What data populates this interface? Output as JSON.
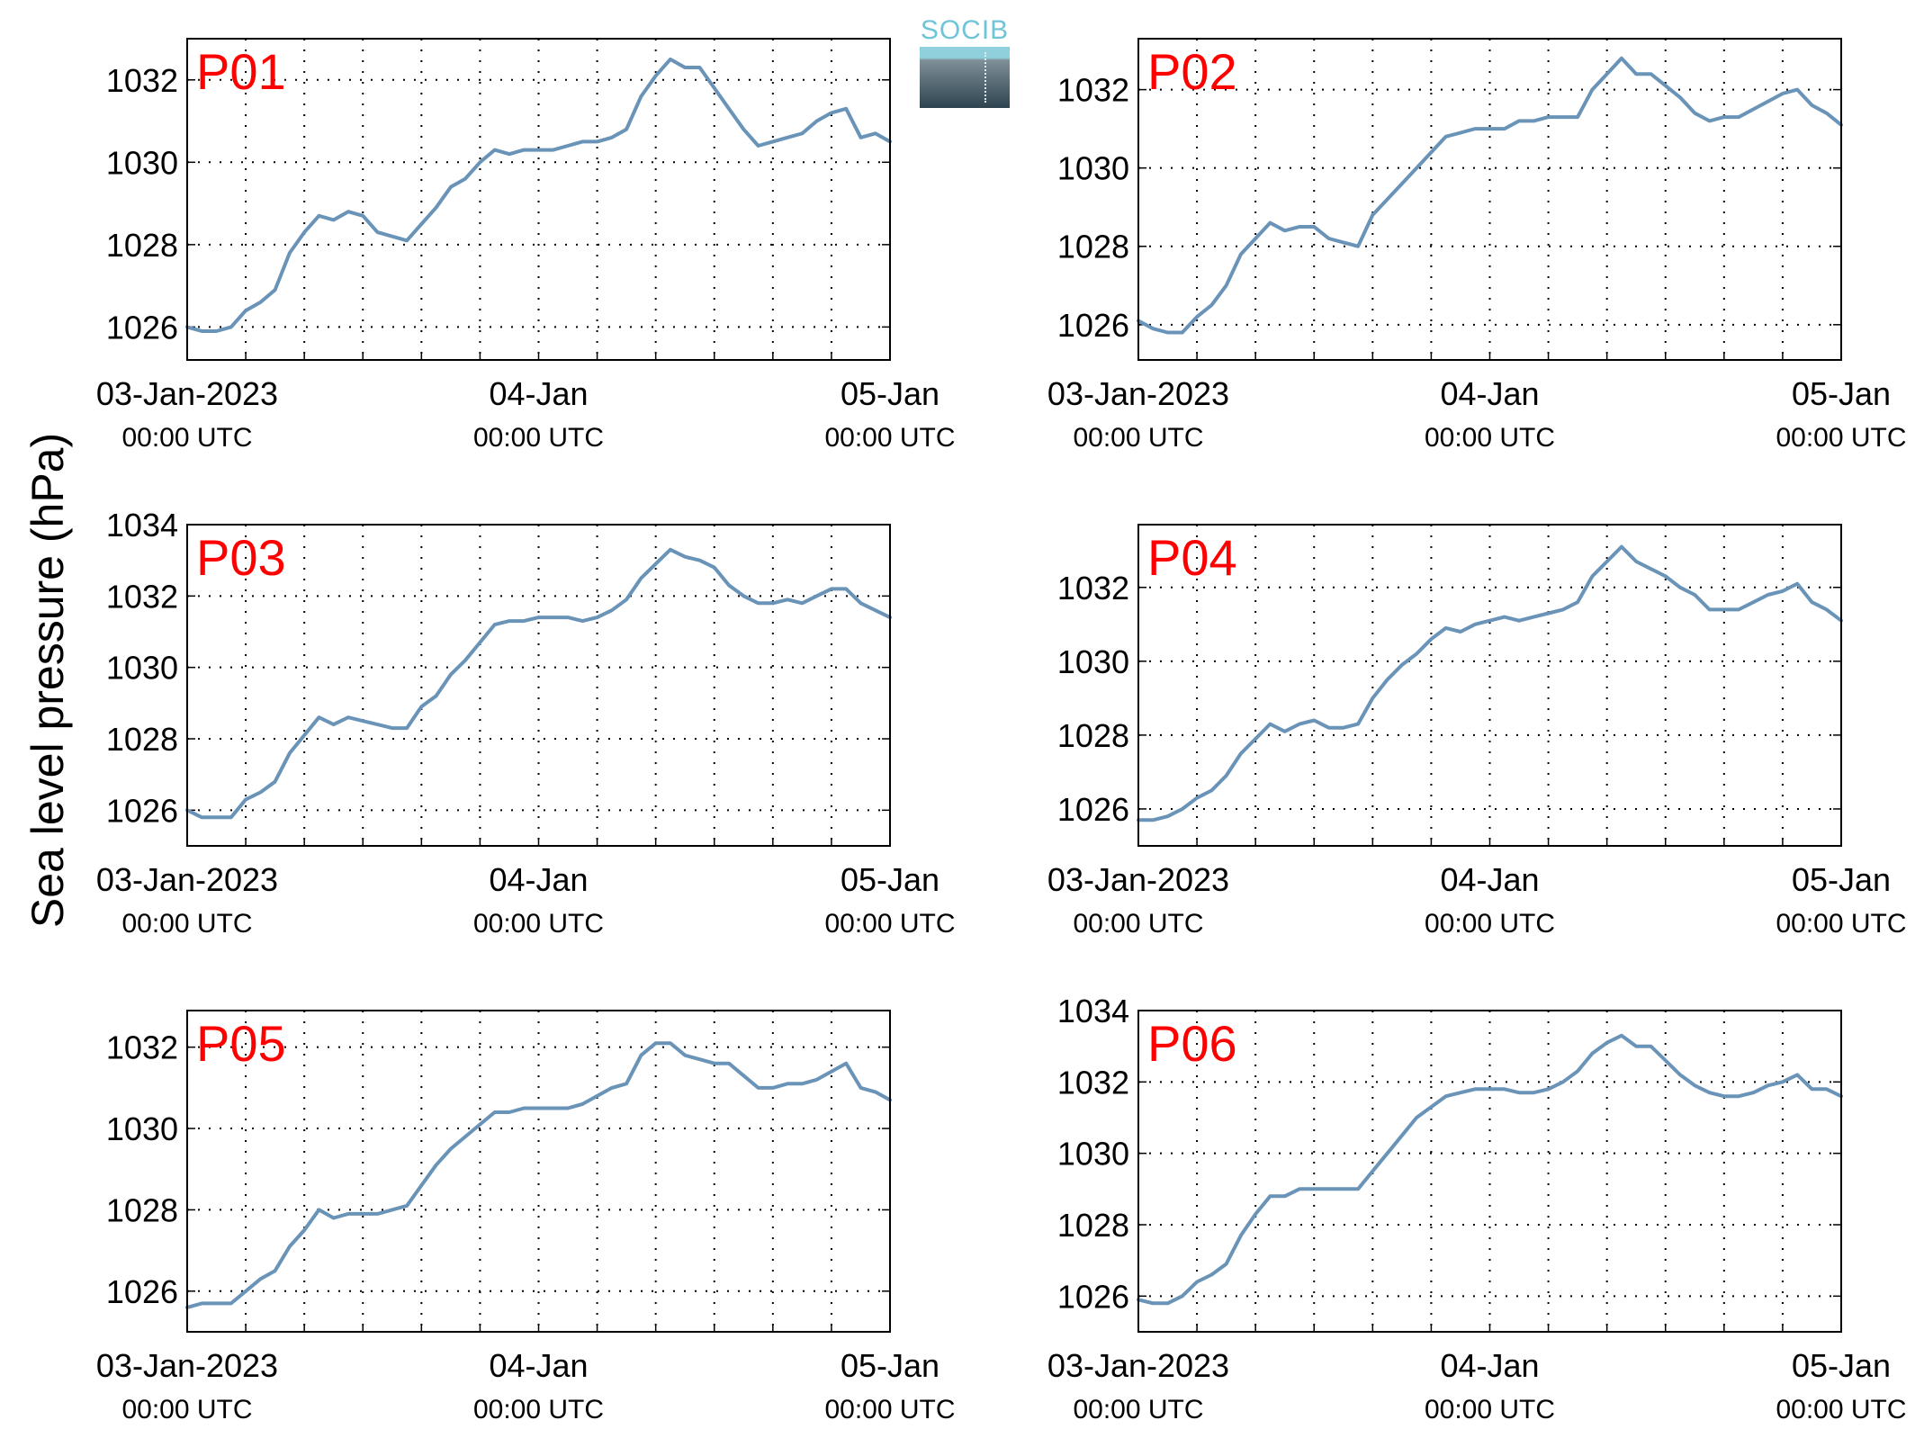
{
  "figure": {
    "ylabel": "Sea level pressure (hPa)",
    "logo_text": "SOCIB",
    "line_color": "#6a93b8",
    "label_color": "#ff0000"
  },
  "chart_data": [
    {
      "type": "line",
      "label": "P01",
      "xticks": [
        {
          "pos": 0,
          "l1": "03-Jan-2023",
          "l2": "00:00 UTC"
        },
        {
          "pos": 24,
          "l1": "04-Jan",
          "l2": "00:00 UTC"
        },
        {
          "pos": 48,
          "l1": "05-Jan",
          "l2": "00:00 UTC"
        }
      ],
      "xlim": [
        0,
        48
      ],
      "ylim": [
        1025.2,
        1033.0
      ],
      "yticks": [
        1026,
        1028,
        1030,
        1032
      ],
      "grid": true,
      "x": [
        0,
        1,
        2,
        3,
        4,
        5,
        6,
        7,
        8,
        9,
        10,
        11,
        12,
        13,
        14,
        15,
        16,
        17,
        18,
        19,
        20,
        21,
        22,
        23,
        24,
        25,
        26,
        27,
        28,
        29,
        30,
        31,
        32,
        33,
        34,
        35,
        36,
        37,
        38,
        39,
        40,
        41,
        42,
        43,
        44,
        45,
        46,
        47,
        48
      ],
      "y": [
        1026.0,
        1025.9,
        1025.9,
        1026.0,
        1026.4,
        1026.6,
        1026.9,
        1027.8,
        1028.3,
        1028.7,
        1028.6,
        1028.8,
        1028.7,
        1028.3,
        1028.2,
        1028.1,
        1028.5,
        1028.9,
        1029.4,
        1029.6,
        1030.0,
        1030.3,
        1030.2,
        1030.3,
        1030.3,
        1030.3,
        1030.4,
        1030.5,
        1030.5,
        1030.6,
        1030.8,
        1031.6,
        1032.1,
        1032.5,
        1032.3,
        1032.3,
        1031.8,
        1031.3,
        1030.8,
        1030.4,
        1030.5,
        1030.6,
        1030.7,
        1031.0,
        1031.2,
        1031.3,
        1030.6,
        1030.7,
        1030.5
      ]
    },
    {
      "type": "line",
      "label": "P02",
      "xticks": [
        {
          "pos": 0,
          "l1": "03-Jan-2023",
          "l2": "00:00 UTC"
        },
        {
          "pos": 24,
          "l1": "04-Jan",
          "l2": "00:00 UTC"
        },
        {
          "pos": 48,
          "l1": "05-Jan",
          "l2": "00:00 UTC"
        }
      ],
      "xlim": [
        0,
        48
      ],
      "ylim": [
        1025.1,
        1033.3
      ],
      "yticks": [
        1026,
        1028,
        1030,
        1032
      ],
      "grid": true,
      "x": [
        0,
        1,
        2,
        3,
        4,
        5,
        6,
        7,
        8,
        9,
        10,
        11,
        12,
        13,
        14,
        15,
        16,
        17,
        18,
        19,
        20,
        21,
        22,
        23,
        24,
        25,
        26,
        27,
        28,
        29,
        30,
        31,
        32,
        33,
        34,
        35,
        36,
        37,
        38,
        39,
        40,
        41,
        42,
        43,
        44,
        45,
        46,
        47,
        48
      ],
      "y": [
        1026.1,
        1025.9,
        1025.8,
        1025.8,
        1026.2,
        1026.5,
        1027.0,
        1027.8,
        1028.2,
        1028.6,
        1028.4,
        1028.5,
        1028.5,
        1028.2,
        1028.1,
        1028.0,
        1028.8,
        1029.2,
        1029.6,
        1030.0,
        1030.4,
        1030.8,
        1030.9,
        1031.0,
        1031.0,
        1031.0,
        1031.2,
        1031.2,
        1031.3,
        1031.3,
        1031.3,
        1032.0,
        1032.4,
        1032.8,
        1032.4,
        1032.4,
        1032.1,
        1031.8,
        1031.4,
        1031.2,
        1031.3,
        1031.3,
        1031.5,
        1031.7,
        1031.9,
        1032.0,
        1031.6,
        1031.4,
        1031.1
      ]
    },
    {
      "type": "line",
      "label": "P03",
      "xticks": [
        {
          "pos": 0,
          "l1": "03-Jan-2023",
          "l2": "00:00 UTC"
        },
        {
          "pos": 24,
          "l1": "04-Jan",
          "l2": "00:00 UTC"
        },
        {
          "pos": 48,
          "l1": "05-Jan",
          "l2": "00:00 UTC"
        }
      ],
      "xlim": [
        0,
        48
      ],
      "ylim": [
        1025.0,
        1034.0
      ],
      "yticks": [
        1026,
        1028,
        1030,
        1032,
        1034
      ],
      "grid": true,
      "x": [
        0,
        1,
        2,
        3,
        4,
        5,
        6,
        7,
        8,
        9,
        10,
        11,
        12,
        13,
        14,
        15,
        16,
        17,
        18,
        19,
        20,
        21,
        22,
        23,
        24,
        25,
        26,
        27,
        28,
        29,
        30,
        31,
        32,
        33,
        34,
        35,
        36,
        37,
        38,
        39,
        40,
        41,
        42,
        43,
        44,
        45,
        46,
        47,
        48
      ],
      "y": [
        1026.0,
        1025.8,
        1025.8,
        1025.8,
        1026.3,
        1026.5,
        1026.8,
        1027.6,
        1028.1,
        1028.6,
        1028.4,
        1028.6,
        1028.5,
        1028.4,
        1028.3,
        1028.3,
        1028.9,
        1029.2,
        1029.8,
        1030.2,
        1030.7,
        1031.2,
        1031.3,
        1031.3,
        1031.4,
        1031.4,
        1031.4,
        1031.3,
        1031.4,
        1031.6,
        1031.9,
        1032.5,
        1032.9,
        1033.3,
        1033.1,
        1033.0,
        1032.8,
        1032.3,
        1032.0,
        1031.8,
        1031.8,
        1031.9,
        1031.8,
        1032.0,
        1032.2,
        1032.2,
        1031.8,
        1031.6,
        1031.4
      ]
    },
    {
      "type": "line",
      "label": "P04",
      "xticks": [
        {
          "pos": 0,
          "l1": "03-Jan-2023",
          "l2": "00:00 UTC"
        },
        {
          "pos": 24,
          "l1": "04-Jan",
          "l2": "00:00 UTC"
        },
        {
          "pos": 48,
          "l1": "05-Jan",
          "l2": "00:00 UTC"
        }
      ],
      "xlim": [
        0,
        48
      ],
      "ylim": [
        1025.0,
        1033.7
      ],
      "yticks": [
        1026,
        1028,
        1030,
        1032
      ],
      "grid": true,
      "x": [
        0,
        1,
        2,
        3,
        4,
        5,
        6,
        7,
        8,
        9,
        10,
        11,
        12,
        13,
        14,
        15,
        16,
        17,
        18,
        19,
        20,
        21,
        22,
        23,
        24,
        25,
        26,
        27,
        28,
        29,
        30,
        31,
        32,
        33,
        34,
        35,
        36,
        37,
        38,
        39,
        40,
        41,
        42,
        43,
        44,
        45,
        46,
        47,
        48
      ],
      "y": [
        1025.7,
        1025.7,
        1025.8,
        1026.0,
        1026.3,
        1026.5,
        1026.9,
        1027.5,
        1027.9,
        1028.3,
        1028.1,
        1028.3,
        1028.4,
        1028.2,
        1028.2,
        1028.3,
        1029.0,
        1029.5,
        1029.9,
        1030.2,
        1030.6,
        1030.9,
        1030.8,
        1031.0,
        1031.1,
        1031.2,
        1031.1,
        1031.2,
        1031.3,
        1031.4,
        1031.6,
        1032.3,
        1032.7,
        1033.1,
        1032.7,
        1032.5,
        1032.3,
        1032.0,
        1031.8,
        1031.4,
        1031.4,
        1031.4,
        1031.6,
        1031.8,
        1031.9,
        1032.1,
        1031.6,
        1031.4,
        1031.1
      ]
    },
    {
      "type": "line",
      "label": "P05",
      "xticks": [
        {
          "pos": 0,
          "l1": "03-Jan-2023",
          "l2": "00:00 UTC"
        },
        {
          "pos": 24,
          "l1": "04-Jan",
          "l2": "00:00 UTC"
        },
        {
          "pos": 48,
          "l1": "05-Jan",
          "l2": "00:00 UTC"
        }
      ],
      "xlim": [
        0,
        48
      ],
      "ylim": [
        1025.0,
        1032.9
      ],
      "yticks": [
        1026,
        1028,
        1030,
        1032
      ],
      "grid": true,
      "x": [
        0,
        1,
        2,
        3,
        4,
        5,
        6,
        7,
        8,
        9,
        10,
        11,
        12,
        13,
        14,
        15,
        16,
        17,
        18,
        19,
        20,
        21,
        22,
        23,
        24,
        25,
        26,
        27,
        28,
        29,
        30,
        31,
        32,
        33,
        34,
        35,
        36,
        37,
        38,
        39,
        40,
        41,
        42,
        43,
        44,
        45,
        46,
        47,
        48
      ],
      "y": [
        1025.6,
        1025.7,
        1025.7,
        1025.7,
        1026.0,
        1026.3,
        1026.5,
        1027.1,
        1027.5,
        1028.0,
        1027.8,
        1027.9,
        1027.9,
        1027.9,
        1028.0,
        1028.1,
        1028.6,
        1029.1,
        1029.5,
        1029.8,
        1030.1,
        1030.4,
        1030.4,
        1030.5,
        1030.5,
        1030.5,
        1030.5,
        1030.6,
        1030.8,
        1031.0,
        1031.1,
        1031.8,
        1032.1,
        1032.1,
        1031.8,
        1031.7,
        1031.6,
        1031.6,
        1031.3,
        1031.0,
        1031.0,
        1031.1,
        1031.1,
        1031.2,
        1031.4,
        1031.6,
        1031.0,
        1030.9,
        1030.7
      ]
    },
    {
      "type": "line",
      "label": "P06",
      "xticks": [
        {
          "pos": 0,
          "l1": "03-Jan-2023",
          "l2": "00:00 UTC"
        },
        {
          "pos": 24,
          "l1": "04-Jan",
          "l2": "00:00 UTC"
        },
        {
          "pos": 48,
          "l1": "05-Jan",
          "l2": "00:00 UTC"
        }
      ],
      "xlim": [
        0,
        48
      ],
      "ylim": [
        1025.0,
        1034.0
      ],
      "yticks": [
        1026,
        1028,
        1030,
        1032,
        1034
      ],
      "grid": true,
      "x": [
        0,
        1,
        2,
        3,
        4,
        5,
        6,
        7,
        8,
        9,
        10,
        11,
        12,
        13,
        14,
        15,
        16,
        17,
        18,
        19,
        20,
        21,
        22,
        23,
        24,
        25,
        26,
        27,
        28,
        29,
        30,
        31,
        32,
        33,
        34,
        35,
        36,
        37,
        38,
        39,
        40,
        41,
        42,
        43,
        44,
        45,
        46,
        47,
        48
      ],
      "y": [
        1025.9,
        1025.8,
        1025.8,
        1026.0,
        1026.4,
        1026.6,
        1026.9,
        1027.7,
        1028.3,
        1028.8,
        1028.8,
        1029.0,
        1029.0,
        1029.0,
        1029.0,
        1029.0,
        1029.5,
        1030.0,
        1030.5,
        1031.0,
        1031.3,
        1031.6,
        1031.7,
        1031.8,
        1031.8,
        1031.8,
        1031.7,
        1031.7,
        1031.8,
        1032.0,
        1032.3,
        1032.8,
        1033.1,
        1033.3,
        1033.0,
        1033.0,
        1032.6,
        1032.2,
        1031.9,
        1031.7,
        1031.6,
        1031.6,
        1031.7,
        1031.9,
        1032.0,
        1032.2,
        1031.8,
        1031.8,
        1031.6
      ]
    }
  ]
}
